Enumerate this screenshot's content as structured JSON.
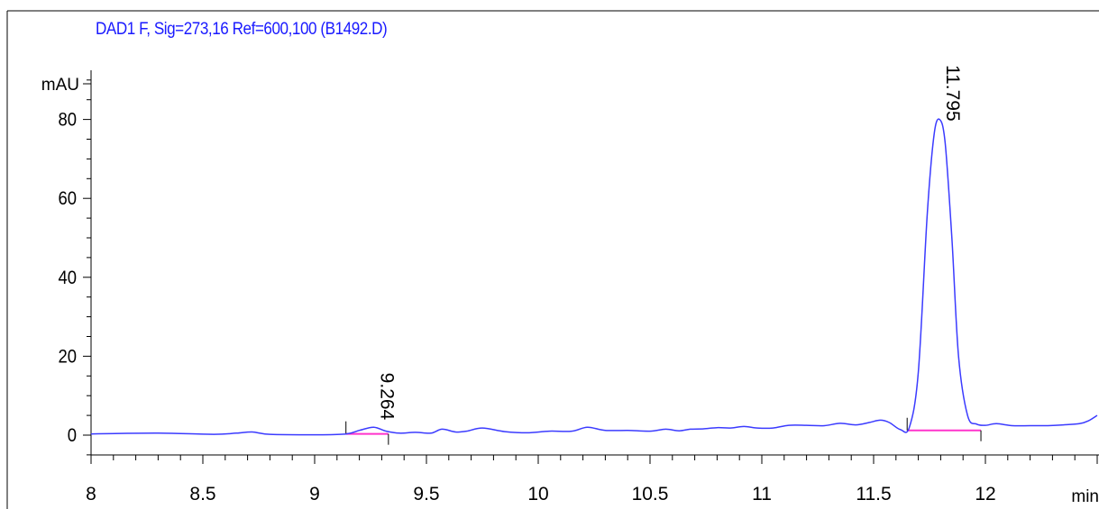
{
  "colors": {
    "signal": "#3b3bff",
    "baseline": "#ff33cc",
    "axis": "#000000",
    "title": "#1a1aff",
    "peak_label": "#000000"
  },
  "chart_data": {
    "type": "line",
    "title": "DAD1 F, Sig=273,16 Ref=600,100 (B1492.D)",
    "xlabel": "min",
    "ylabel": "mAU",
    "xlim": [
      8.0,
      12.5
    ],
    "ylim": [
      -5.0,
      94.0
    ],
    "grid": false,
    "x_ticks": [
      "8",
      "8.5",
      "9",
      "9.5",
      "10",
      "10.5",
      "11",
      "11.5",
      "12"
    ],
    "y_ticks": [
      "0",
      "20",
      "40",
      "60",
      "80"
    ],
    "series": [
      {
        "x": [
          8.0,
          8.3,
          8.55,
          8.65,
          8.72,
          8.8,
          9.0,
          9.14,
          9.2,
          9.264,
          9.32,
          9.38,
          9.45,
          9.52,
          9.57,
          9.63,
          9.68,
          9.75,
          9.85,
          9.95,
          10.05,
          10.15,
          10.22,
          10.3,
          10.4,
          10.5,
          10.57,
          10.63,
          10.68,
          10.74,
          10.8,
          10.86,
          10.92,
          10.98,
          11.05,
          11.12,
          11.2,
          11.28,
          11.35,
          11.42,
          11.48,
          11.53,
          11.57,
          11.62,
          11.66,
          11.7,
          11.74,
          11.77,
          11.795,
          11.82,
          11.85,
          11.88,
          11.92,
          11.96,
          12.0,
          12.05,
          12.12,
          12.2,
          12.28,
          12.35,
          12.42,
          12.46,
          12.5
        ],
        "y": [
          0.3,
          0.5,
          0.2,
          0.5,
          0.8,
          0.2,
          0.1,
          0.3,
          1.2,
          2.0,
          1.0,
          0.5,
          0.7,
          0.5,
          1.5,
          0.8,
          1.0,
          1.8,
          0.9,
          0.6,
          1.0,
          1.0,
          2.0,
          1.2,
          1.2,
          1.0,
          1.5,
          1.1,
          1.5,
          1.6,
          1.9,
          1.8,
          2.2,
          1.8,
          1.8,
          2.5,
          2.5,
          2.4,
          3.0,
          2.6,
          3.2,
          3.8,
          3.2,
          1.4,
          2.0,
          16.0,
          56.0,
          76.0,
          80.0,
          74.0,
          50.0,
          20.0,
          5.0,
          2.8,
          2.5,
          2.9,
          2.4,
          2.4,
          2.4,
          2.6,
          2.9,
          3.6,
          5.0
        ]
      }
    ],
    "peaks": [
      {
        "rt_label": "9.264",
        "rt": 9.264,
        "height": 2.0,
        "baseline_start": 9.14,
        "baseline_end": 9.33,
        "baseline_y": 0.3
      },
      {
        "rt_label": "11.795",
        "rt": 11.795,
        "height": 80.0,
        "baseline_start": 11.65,
        "baseline_end": 11.98,
        "baseline_y": 1.2
      }
    ]
  }
}
